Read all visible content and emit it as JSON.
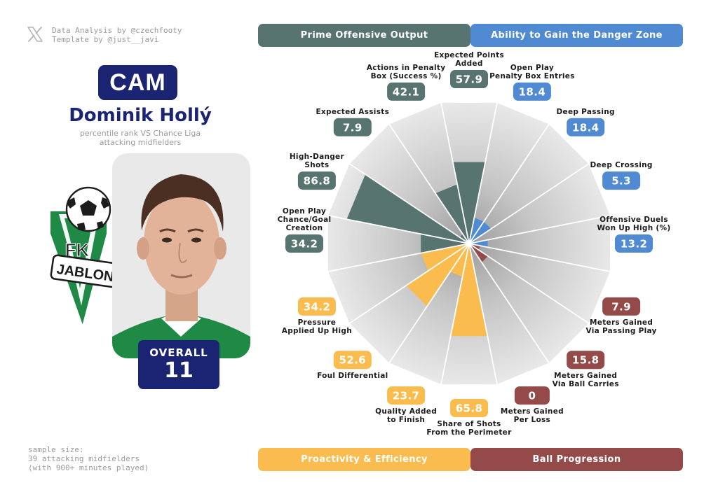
{
  "credits": {
    "line1": "Data Analysis by @czechfooty",
    "line2": "Template by @just__javi"
  },
  "player": {
    "position": "CAM",
    "name": "Dominik Hollý",
    "subtitle_line1": "percentile rank VS Chance Liga",
    "subtitle_line2": "attacking midfielders",
    "overall_label": "OVERALL",
    "overall_value": "11",
    "club_logo_text_top": "FK",
    "club_logo_text_banner": "JABLON"
  },
  "sample": {
    "line1": "sample size:",
    "line2": "39 attacking midfielders",
    "line3": "(with 900+ minutes played)"
  },
  "colors": {
    "navy": "#1a2472",
    "prime": "#587470",
    "danger": "#4f8ad2",
    "proactivity": "#fbbc4f",
    "progression": "#934a48",
    "club_green": "#1e8a46"
  },
  "groups": {
    "prime": "Prime Offensive Output",
    "danger": "Ability to Gain the Danger Zone",
    "proactivity": "Proactivity & Efficiency",
    "progression": "Ball Progression"
  },
  "chart_data": {
    "type": "radar",
    "scale": [
      0,
      100
    ],
    "categories": [
      {
        "label": [
          "Expected Points",
          "Added"
        ],
        "value": 57.9,
        "display": "57.9",
        "group": "prime"
      },
      {
        "label": [
          "Open Play",
          "Penalty Box Entries"
        ],
        "value": 18.4,
        "display": "18.4",
        "group": "danger"
      },
      {
        "label": [
          "Deep Passing"
        ],
        "value": 18.4,
        "display": "18.4",
        "group": "danger"
      },
      {
        "label": [
          "Deep Crossing"
        ],
        "value": 5.3,
        "display": "5.3",
        "group": "danger"
      },
      {
        "label": [
          "Offensive Duels",
          "Won Up High (%)"
        ],
        "value": 13.2,
        "display": "13.2",
        "group": "danger"
      },
      {
        "label": [
          "Meters Gained",
          "Via Passing Play"
        ],
        "value": 7.9,
        "display": "7.9",
        "group": "progression"
      },
      {
        "label": [
          "Meters Gained",
          "Via Ball Carries"
        ],
        "value": 15.8,
        "display": "15.8",
        "group": "progression"
      },
      {
        "label": [
          "Meters Gained",
          "Per Loss"
        ],
        "value": 0,
        "display": "0",
        "group": "progression"
      },
      {
        "label": [
          "Share of Shots",
          "From the Perimeter"
        ],
        "value": 65.8,
        "display": "65.8",
        "group": "proactivity"
      },
      {
        "label": [
          "Quality Added",
          "to Finish"
        ],
        "value": 23.7,
        "display": "23.7",
        "group": "proactivity"
      },
      {
        "label": [
          "Foul Differential"
        ],
        "value": 52.6,
        "display": "52.6",
        "group": "proactivity"
      },
      {
        "label": [
          "Pressure",
          "Applied Up High"
        ],
        "value": 34.2,
        "display": "34.2",
        "group": "proactivity"
      },
      {
        "label": [
          "Open Play",
          "Chance/Goal",
          "Creation"
        ],
        "value": 34.2,
        "display": "34.2",
        "group": "prime"
      },
      {
        "label": [
          "High-Danger",
          "Shots"
        ],
        "value": 86.8,
        "display": "86.8",
        "group": "prime"
      },
      {
        "label": [
          "Expected Assists"
        ],
        "value": 7.9,
        "display": "7.9",
        "group": "prime"
      },
      {
        "label": [
          "Actions in Penalty",
          "Box (Success %)"
        ],
        "value": 42.1,
        "display": "42.1",
        "group": "prime"
      }
    ]
  }
}
